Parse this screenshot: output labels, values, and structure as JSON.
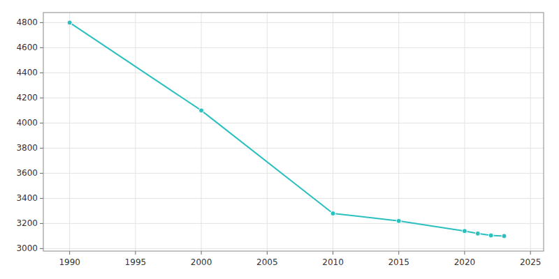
{
  "chart_data": {
    "type": "line",
    "x": [
      1990,
      2000,
      2010,
      2015,
      2020,
      2021,
      2022,
      2023
    ],
    "values": [
      4800,
      4100,
      3280,
      3220,
      3140,
      3120,
      3105,
      3100
    ],
    "color": "#2bbfbf",
    "marker": "circle",
    "xlim": [
      1988,
      2026
    ],
    "ylim": [
      2980,
      4880
    ],
    "xticks": [
      1990,
      1995,
      2000,
      2005,
      2010,
      2015,
      2020,
      2025
    ],
    "yticks": [
      3000,
      3200,
      3400,
      3600,
      3800,
      4000,
      4200,
      4400,
      4600,
      4800
    ],
    "grid": true
  }
}
